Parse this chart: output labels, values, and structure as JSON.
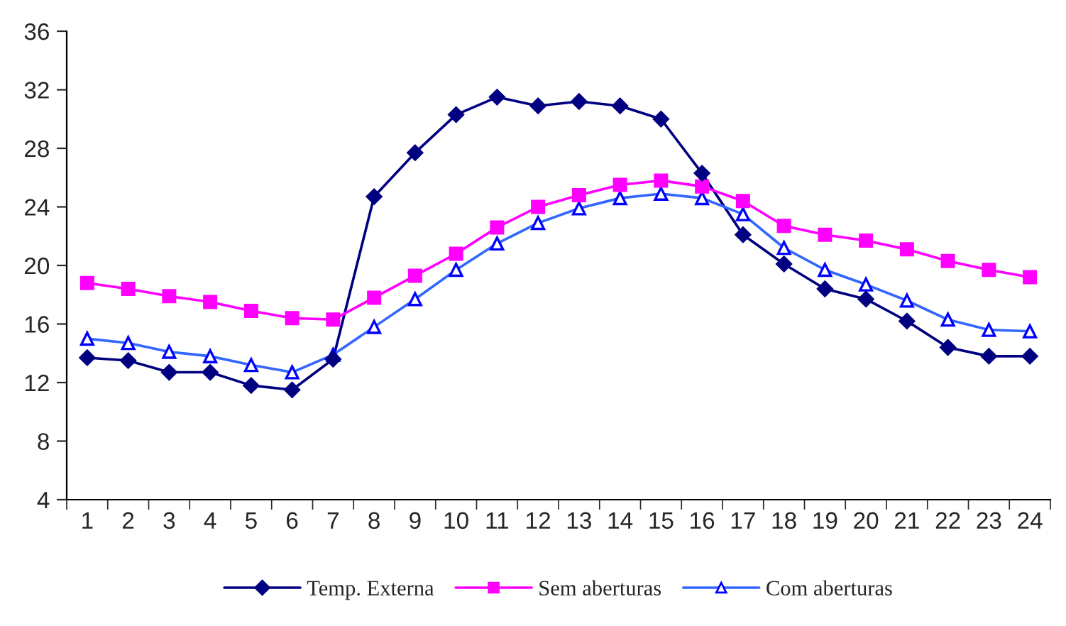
{
  "chart_data": {
    "type": "line",
    "categories": [
      "1",
      "2",
      "3",
      "4",
      "5",
      "6",
      "7",
      "8",
      "9",
      "10",
      "11",
      "12",
      "13",
      "14",
      "15",
      "16",
      "17",
      "18",
      "19",
      "20",
      "21",
      "22",
      "23",
      "24"
    ],
    "ylim": [
      4,
      36
    ],
    "yticks": [
      4,
      8,
      12,
      16,
      20,
      24,
      28,
      32,
      36
    ],
    "grid": false,
    "legend": "bottom",
    "series": [
      {
        "name": "Temp. Externa",
        "color": "#000080",
        "marker": "diamond",
        "values": [
          13.7,
          13.5,
          12.7,
          12.7,
          11.8,
          11.5,
          13.6,
          24.7,
          27.7,
          30.3,
          31.5,
          30.9,
          31.2,
          30.9,
          30.0,
          26.3,
          22.1,
          20.1,
          18.4,
          17.7,
          16.2,
          14.4,
          13.8,
          13.8
        ]
      },
      {
        "name": "Sem aberturas",
        "color": "#ff00ff",
        "marker": "square",
        "values": [
          18.8,
          18.4,
          17.9,
          17.5,
          16.9,
          16.4,
          16.3,
          17.8,
          19.3,
          20.8,
          22.6,
          24.0,
          24.8,
          25.5,
          25.8,
          25.4,
          24.4,
          22.7,
          22.1,
          21.7,
          21.1,
          20.3,
          19.7,
          19.2
        ]
      },
      {
        "name": "Com aberturas",
        "color": "#3366ff",
        "marker": "triangle",
        "values": [
          15.0,
          14.7,
          14.1,
          13.8,
          13.2,
          12.7,
          13.9,
          15.8,
          17.7,
          19.7,
          21.5,
          22.9,
          23.9,
          24.6,
          24.9,
          24.6,
          23.5,
          21.2,
          19.7,
          18.7,
          17.6,
          16.3,
          15.6,
          15.5
        ]
      }
    ]
  }
}
